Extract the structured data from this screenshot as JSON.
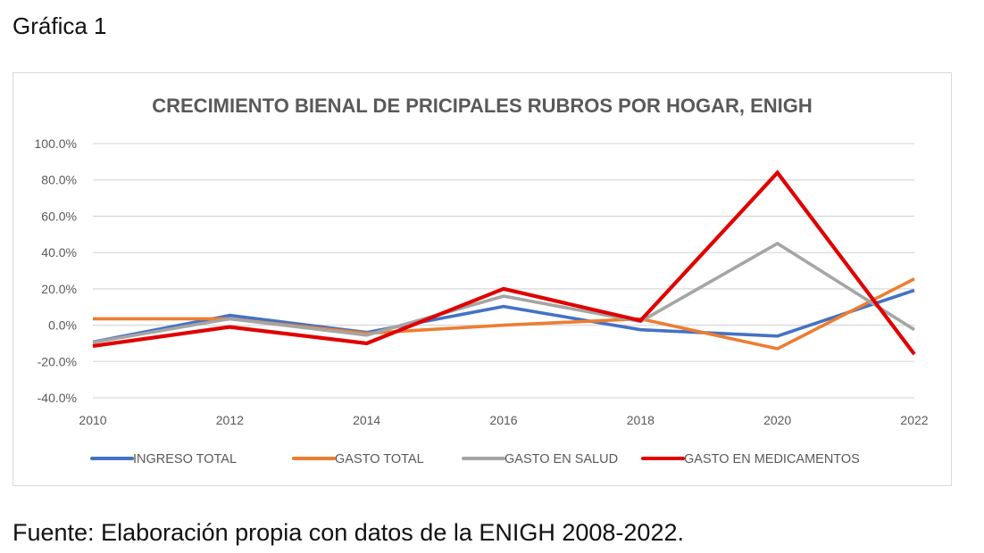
{
  "caption": "Gráfica 1",
  "source_note": "Fuente: Elaboración propia con datos de la ENIGH 2008-2022.",
  "chart_data": {
    "type": "line",
    "title": "CRECIMIENTO BIENAL DE PRICIPALES RUBROS POR HOGAR, ENIGH",
    "xlabel": "",
    "ylabel": "",
    "x": [
      "2010",
      "2012",
      "2014",
      "2016",
      "2018",
      "2020",
      "2022"
    ],
    "yticks": [
      "-40.0%",
      "-20.0%",
      "0.0%",
      "20.0%",
      "40.0%",
      "60.0%",
      "80.0%",
      "100.0%"
    ],
    "ylim": [
      -40,
      100
    ],
    "grid": true,
    "legend_position": "bottom",
    "series": [
      {
        "name": "INGRESO TOTAL",
        "color": "#4472c4",
        "values": [
          -9.3,
          5.4,
          -4.0,
          10.3,
          -2.5,
          -6.0,
          19.2
        ]
      },
      {
        "name": "GASTO TOTAL",
        "color": "#ed7d31",
        "values": [
          3.5,
          3.5,
          -4.5,
          0.0,
          3.5,
          -13.0,
          25.5
        ]
      },
      {
        "name": "GASTO EN SALUD",
        "color": "#a5a5a5",
        "values": [
          -9.5,
          3.5,
          -5.5,
          16.0,
          2.0,
          45.0,
          -2.5
        ]
      },
      {
        "name": "GASTO EN MEDICAMENTOS",
        "color": "#e00000",
        "values": [
          -11.5,
          -1.0,
          -10.0,
          20.0,
          2.5,
          84.0,
          -16.0
        ]
      }
    ]
  }
}
